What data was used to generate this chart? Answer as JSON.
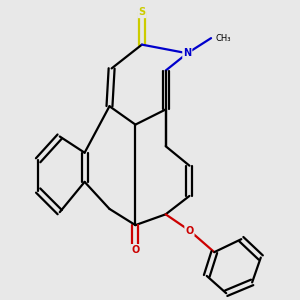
{
  "background_color": "#e8e8e8",
  "line_color": "#000000",
  "N_color": "#0000cc",
  "O_color": "#cc0000",
  "S_color": "#cccc00",
  "bond_lw": 1.6,
  "figsize": [
    3.0,
    3.0
  ],
  "dpi": 100,
  "xlim": [
    0,
    10
  ],
  "ylim": [
    0,
    10
  ]
}
